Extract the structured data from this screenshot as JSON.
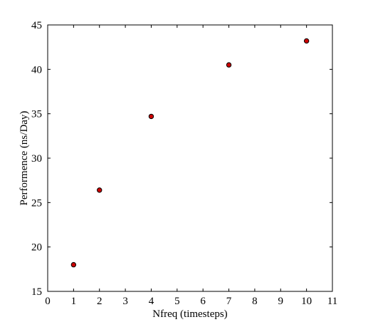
{
  "chart_data": {
    "type": "scatter",
    "title": "",
    "xlabel": "Nfreq (timesteps)",
    "ylabel": "Performence (ns/Day)",
    "xlim": [
      0,
      11
    ],
    "ylim": [
      15,
      45
    ],
    "xticks": [
      0,
      1,
      2,
      3,
      4,
      5,
      6,
      7,
      8,
      9,
      10,
      11
    ],
    "yticks": [
      15,
      20,
      25,
      30,
      35,
      40,
      45
    ],
    "grid": false,
    "marker_color": "#cc0000",
    "marker_edge_color": "#000000",
    "series": [
      {
        "x": [
          1,
          2,
          4,
          7,
          10
        ],
        "y": [
          18.0,
          26.4,
          34.7,
          40.5,
          43.2
        ]
      }
    ]
  }
}
